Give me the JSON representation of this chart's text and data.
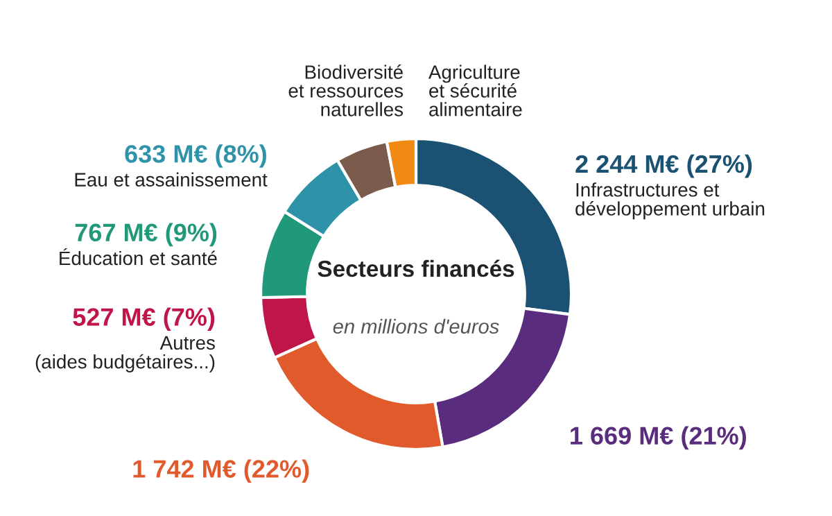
{
  "chart_data": {
    "type": "donut",
    "title": "Secteurs financés",
    "subtitle": "en millions d'euros",
    "categories": [
      "Infrastructures et\ndéveloppement urbain",
      null,
      null,
      "Autres\n(aides budgétaires...)",
      "Éducation et santé",
      "Eau et assainissement",
      "Biodiversité\net ressources\nnaturelles",
      "Agriculture\net sécurité\nalimentaire"
    ],
    "values": [
      2244,
      1669,
      1742,
      527,
      767,
      633,
      450,
      250
    ],
    "value_labels": [
      "2 244 M€ (27%)",
      "1 669 M€ (21%)",
      "1 742 M€ (22%)",
      "527 M€ (7%)",
      "767 M€ (9%)",
      "633 M€ (8%)",
      null,
      null
    ],
    "colors": [
      "#1b5172",
      "#5a2c7e",
      "#e15a2c",
      "#bf1548",
      "#20987a",
      "#2e93a8",
      "#7a5b4c",
      "#f08a12"
    ],
    "legend": false
  }
}
